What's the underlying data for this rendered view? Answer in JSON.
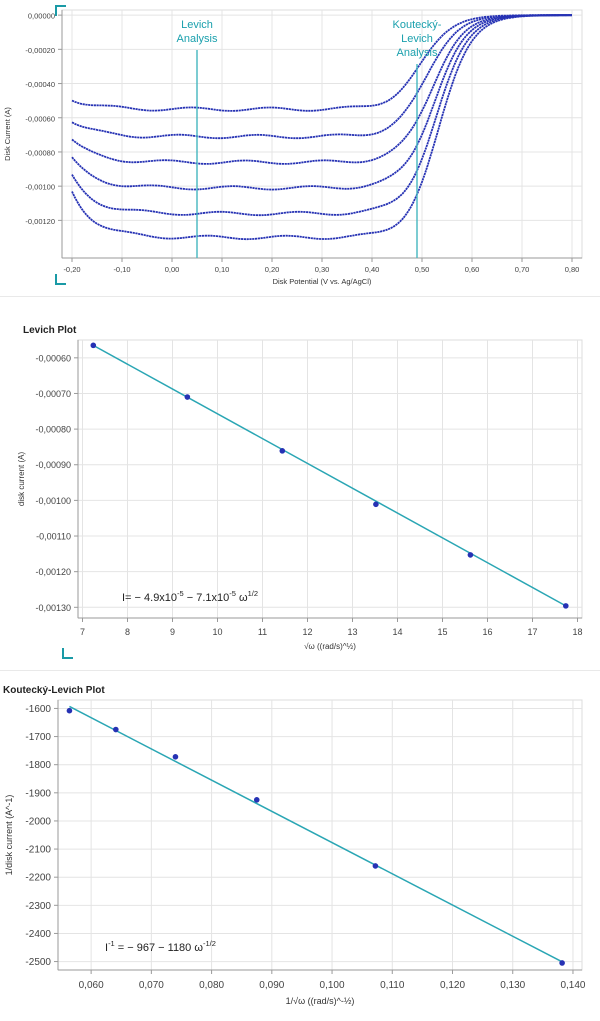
{
  "colors": {
    "curve": "#2632b4",
    "fit_line": "#2aa6b4",
    "marker_line": "#45b6bf",
    "annotation_text": "#1aa0ad",
    "axis": "#9a9a9a",
    "grid": "#e4e4e4",
    "plot_frame": "#dcdcdc",
    "tick_text": "#444444",
    "corner_bracket": "#1a9aa6"
  },
  "chart_data": [
    {
      "type": "line",
      "xlabel": "Disk Potential (V vs. Ag/AgCl)",
      "ylabel": "Disk Current (A)",
      "xlim": [
        -0.22,
        0.82
      ],
      "ylim": [
        -0.00142,
        3e-05
      ],
      "xticks": [
        "-0,20",
        "-0,10",
        "0,00",
        "0,10",
        "0,20",
        "0,30",
        "0,40",
        "0,50",
        "0,60",
        "0,70",
        "0,80"
      ],
      "yticks": [
        "0,00000",
        "-0,00020",
        "-0,00040",
        "-0,00060",
        "-0,00080",
        "-0,00100",
        "-0,00120"
      ],
      "grid": true,
      "series": [
        {
          "plateau": -0.00055,
          "start": -0.00049,
          "half_wave": 0.5
        },
        {
          "plateau": -0.00071,
          "start": -0.00062,
          "half_wave": 0.51
        },
        {
          "plateau": -0.00086,
          "start": -0.00073,
          "half_wave": 0.52
        },
        {
          "plateau": -0.00101,
          "start": -0.00084,
          "half_wave": 0.525
        },
        {
          "plateau": -0.00116,
          "start": -0.00094,
          "half_wave": 0.53
        },
        {
          "plateau": -0.0013,
          "start": -0.00103,
          "half_wave": 0.535
        }
      ],
      "annotations": [
        {
          "text_lines": [
            "Levich",
            "Analysis"
          ],
          "x": 0.05
        },
        {
          "text_lines": [
            "Koutecký-",
            "Levich",
            "Analysis"
          ],
          "x": 0.49
        }
      ]
    },
    {
      "type": "scatter",
      "title": "Levich Plot",
      "xlabel": "√ω ((rad/s)^½)",
      "ylabel": "disk current (A)",
      "xlim": [
        6.9,
        18.1
      ],
      "ylim": [
        -0.00133,
        -0.00055
      ],
      "xticks": [
        "7",
        "8",
        "9",
        "10",
        "11",
        "12",
        "13",
        "14",
        "15",
        "16",
        "17",
        "18"
      ],
      "yticks": [
        "-0,00060",
        "-0,00070",
        "-0,00080",
        "-0,00090",
        "-0,00100",
        "-0,00110",
        "-0,00120",
        "-0,00130"
      ],
      "grid": true,
      "x": [
        7.24,
        9.33,
        11.44,
        13.52,
        15.62,
        17.74
      ],
      "y": [
        -0.000565,
        -0.00071,
        -0.000861,
        -0.001011,
        -0.001153,
        -0.001296
      ],
      "fit": {
        "x": [
          7.24,
          17.74
        ],
        "y": [
          -0.000565,
          -0.001296
        ]
      },
      "equation": {
        "prefix": "I= − 4.9x10",
        "sup1": "-5",
        "middle": " − 7.1x10",
        "sup2": "-5",
        "omega": " ω",
        "sup3": "1/2"
      }
    },
    {
      "type": "scatter",
      "title": "Koutecký-Levich Plot",
      "xlabel": "1/√ω ((rad/s)^-½)",
      "ylabel": "1/disk current (A^-1)",
      "xlim": [
        0.0545,
        0.1415
      ],
      "ylim": [
        -2530,
        -1570
      ],
      "xticks": [
        "0,060",
        "0,070",
        "0,080",
        "0,090",
        "0,100",
        "0,110",
        "0,120",
        "0,130",
        "0,140"
      ],
      "yticks": [
        "-1600",
        "-1700",
        "-1800",
        "-1900",
        "-2000",
        "-2100",
        "-2200",
        "-2300",
        "-2400",
        "-2500"
      ],
      "grid": true,
      "x": [
        0.0564,
        0.0641,
        0.074,
        0.0875,
        0.1072,
        0.1382
      ],
      "y": [
        -1608,
        -1675,
        -1772,
        -1925,
        -2160,
        -2505
      ],
      "fit": {
        "x": [
          0.0564,
          0.1382
        ],
        "y": [
          -1593,
          -2501
        ]
      },
      "equation": {
        "prefix": "I",
        "sup1": "-1",
        "middle": " = − 967 − 1180  ω",
        "sup2": "-1/2"
      }
    }
  ]
}
